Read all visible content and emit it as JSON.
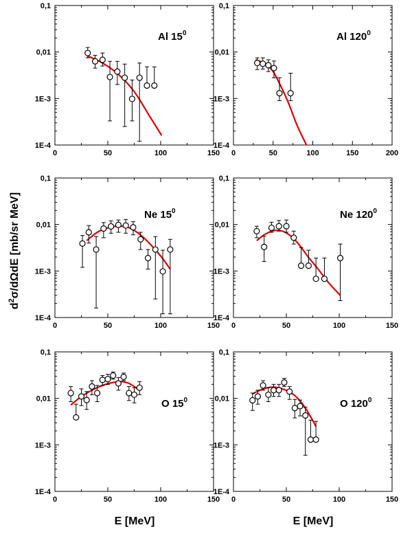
{
  "figure": {
    "ylabel_parts": [
      "d",
      "2",
      "σ/dΩdE [mb/sr MeV]"
    ],
    "xlabel": "E [MeV]"
  },
  "chart_data": [
    {
      "type": "scatter",
      "label": "Al",
      "angle": "15",
      "deg": "0",
      "xlim": [
        0,
        150
      ],
      "ylim": [
        0.0001,
        0.1
      ],
      "yscale": "log",
      "xticks": [
        "0",
        "50",
        "100",
        "150"
      ],
      "yticks": [
        "1E-4",
        "1E-3",
        "0,01",
        "0,1"
      ],
      "points": [
        {
          "x": 31,
          "y": 0.0095,
          "lo": 0.0075,
          "hi": 0.0125
        },
        {
          "x": 38,
          "y": 0.0063,
          "lo": 0.0045,
          "hi": 0.0085
        },
        {
          "x": 45,
          "y": 0.0068,
          "lo": 0.005,
          "hi": 0.0095
        },
        {
          "x": 52,
          "y": 0.0029,
          "lo": 0.00033,
          "hi": 0.0063
        },
        {
          "x": 59,
          "y": 0.0038,
          "lo": 0.002,
          "hi": 0.0063
        },
        {
          "x": 66,
          "y": 0.0028,
          "lo": 0.00025,
          "hi": 0.0055
        },
        {
          "x": 73,
          "y": 0.00098,
          "lo": 0.00033,
          "hi": 0.0025
        },
        {
          "x": 80,
          "y": 0.0028,
          "lo": 0.00012,
          "hi": 0.0058
        },
        {
          "x": 87,
          "y": 0.0019,
          "lo": 0.0019,
          "hi": 0.0048
        },
        {
          "x": 94,
          "y": 0.0019,
          "lo": 0.0019,
          "hi": 0.0048
        }
      ],
      "fit": {
        "x": [
          31,
          45,
          60,
          75,
          90,
          101
        ],
        "y": [
          0.0082,
          0.0058,
          0.0033,
          0.0014,
          0.0004,
          0.00016
        ]
      }
    },
    {
      "type": "scatter",
      "label": "Al",
      "angle": "120",
      "deg": "0",
      "xlim": [
        0,
        200
      ],
      "ylim": [
        0.0001,
        0.1
      ],
      "yscale": "log",
      "xticks": [
        "0",
        "50",
        "100",
        "150",
        "200"
      ],
      "yticks": [
        "1E-4",
        "1E-3",
        "0,01",
        "0,1"
      ],
      "points": [
        {
          "x": 30,
          "y": 0.0058,
          "lo": 0.0042,
          "hi": 0.0075
        },
        {
          "x": 37,
          "y": 0.0056,
          "lo": 0.0043,
          "hi": 0.0075
        },
        {
          "x": 44,
          "y": 0.0052,
          "lo": 0.0038,
          "hi": 0.0068
        },
        {
          "x": 51,
          "y": 0.0045,
          "lo": 0.0028,
          "hi": 0.0064
        },
        {
          "x": 58,
          "y": 0.0013,
          "lo": 0.0009,
          "hi": 0.0028
        },
        {
          "x": 72,
          "y": 0.0013,
          "lo": 0.0009,
          "hi": 0.0035
        }
      ],
      "fit": {
        "x": [
          28,
          40,
          50,
          60,
          70,
          80,
          92
        ],
        "y": [
          0.0068,
          0.0056,
          0.0038,
          0.0018,
          0.00075,
          0.00027,
          0.0001
        ]
      }
    },
    {
      "type": "scatter",
      "label": "Ne",
      "angle": "15",
      "deg": "0",
      "xlim": [
        0,
        150
      ],
      "ylim": [
        0.0001,
        0.1
      ],
      "yscale": "log",
      "xticks": [
        "0",
        "50",
        "100",
        "150"
      ],
      "yticks": [
        "1E-4",
        "1E-3",
        "0,01",
        "0,1"
      ],
      "points": [
        {
          "x": 26,
          "y": 0.0039,
          "lo": 0.0012,
          "hi": 0.0058
        },
        {
          "x": 32,
          "y": 0.0068,
          "lo": 0.004,
          "hi": 0.0095
        },
        {
          "x": 39,
          "y": 0.0029,
          "lo": 0.00016,
          "hi": 0.0055
        },
        {
          "x": 46,
          "y": 0.0082,
          "lo": 0.0052,
          "hi": 0.011
        },
        {
          "x": 53,
          "y": 0.0091,
          "lo": 0.0065,
          "hi": 0.012
        },
        {
          "x": 60,
          "y": 0.0098,
          "lo": 0.0068,
          "hi": 0.0125
        },
        {
          "x": 67,
          "y": 0.0095,
          "lo": 0.0065,
          "hi": 0.0128
        },
        {
          "x": 74,
          "y": 0.0087,
          "lo": 0.006,
          "hi": 0.0115
        },
        {
          "x": 81,
          "y": 0.0048,
          "lo": 0.0029,
          "hi": 0.0068
        },
        {
          "x": 88,
          "y": 0.0019,
          "lo": 0.0011,
          "hi": 0.0029
        },
        {
          "x": 95,
          "y": 0.0029,
          "lo": 0.00025,
          "hi": 0.0055
        },
        {
          "x": 102,
          "y": 0.00098,
          "lo": 0.00012,
          "hi": 0.0028
        },
        {
          "x": 109,
          "y": 0.0029,
          "lo": 0.00012,
          "hi": 0.0048
        }
      ],
      "fit": {
        "x": [
          30,
          40,
          50,
          60,
          70,
          80,
          90,
          100,
          109
        ],
        "y": [
          0.0045,
          0.0068,
          0.0085,
          0.0092,
          0.0085,
          0.0062,
          0.0038,
          0.0021,
          0.0011
        ]
      }
    },
    {
      "type": "scatter",
      "label": "Ne",
      "angle": "120",
      "deg": "0",
      "xlim": [
        0,
        150
      ],
      "ylim": [
        0.0001,
        0.1
      ],
      "yscale": "log",
      "xticks": [
        "0",
        "50",
        "100",
        "150"
      ],
      "yticks": [
        "1E-4",
        "1E-3",
        "0,01",
        "0,1"
      ],
      "points": [
        {
          "x": 22,
          "y": 0.0072,
          "lo": 0.0052,
          "hi": 0.0092
        },
        {
          "x": 29,
          "y": 0.0033,
          "lo": 0.0016,
          "hi": 0.0056
        },
        {
          "x": 36,
          "y": 0.0085,
          "lo": 0.0068,
          "hi": 0.0112
        },
        {
          "x": 43,
          "y": 0.0092,
          "lo": 0.0072,
          "hi": 0.0122
        },
        {
          "x": 50,
          "y": 0.0092,
          "lo": 0.0068,
          "hi": 0.0125
        },
        {
          "x": 57,
          "y": 0.0052,
          "lo": 0.0038,
          "hi": 0.0072
        },
        {
          "x": 64,
          "y": 0.0013,
          "lo": 0.0013,
          "hi": 0.0032
        },
        {
          "x": 71,
          "y": 0.0013,
          "lo": 0.0013,
          "hi": 0.0028
        },
        {
          "x": 78,
          "y": 0.00068,
          "lo": 0.00068,
          "hi": 0.0019
        },
        {
          "x": 86,
          "y": 0.00068,
          "lo": 0.00068,
          "hi": 0.0019
        },
        {
          "x": 101,
          "y": 0.0019,
          "lo": 0.00023,
          "hi": 0.0038
        }
      ],
      "fit": {
        "x": [
          22,
          30,
          40,
          50,
          60,
          70,
          80,
          90,
          101
        ],
        "y": [
          0.0045,
          0.0062,
          0.0075,
          0.0066,
          0.0042,
          0.0021,
          0.0011,
          0.00056,
          0.0003
        ]
      }
    },
    {
      "type": "scatter",
      "label": "O",
      "angle": "15",
      "deg": "0",
      "xlim": [
        0,
        150
      ],
      "ylim": [
        0.0001,
        0.1
      ],
      "yscale": "log",
      "xticks": [
        "0",
        "50",
        "100",
        "150"
      ],
      "yticks": [
        "1E-4",
        "1E-3",
        "0,01",
        "0,1"
      ],
      "points": [
        {
          "x": 15,
          "y": 0.013,
          "lo": 0.0085,
          "hi": 0.018
        },
        {
          "x": 20,
          "y": 0.0039,
          "lo": 0.0039,
          "hi": 0.0075
        },
        {
          "x": 25,
          "y": 0.011,
          "lo": 0.007,
          "hi": 0.016
        },
        {
          "x": 30,
          "y": 0.0092,
          "lo": 0.0058,
          "hi": 0.014
        },
        {
          "x": 35,
          "y": 0.018,
          "lo": 0.012,
          "hi": 0.024
        },
        {
          "x": 40,
          "y": 0.013,
          "lo": 0.0085,
          "hi": 0.019
        },
        {
          "x": 45,
          "y": 0.025,
          "lo": 0.019,
          "hi": 0.031
        },
        {
          "x": 50,
          "y": 0.026,
          "lo": 0.02,
          "hi": 0.033
        },
        {
          "x": 55,
          "y": 0.031,
          "lo": 0.026,
          "hi": 0.037
        },
        {
          "x": 60,
          "y": 0.021,
          "lo": 0.015,
          "hi": 0.028
        },
        {
          "x": 65,
          "y": 0.029,
          "lo": 0.024,
          "hi": 0.035
        },
        {
          "x": 70,
          "y": 0.013,
          "lo": 0.009,
          "hi": 0.018
        },
        {
          "x": 75,
          "y": 0.012,
          "lo": 0.008,
          "hi": 0.017
        },
        {
          "x": 80,
          "y": 0.017,
          "lo": 0.012,
          "hi": 0.023
        }
      ],
      "fit": {
        "x": [
          15,
          25,
          35,
          45,
          55,
          62,
          70,
          80
        ],
        "y": [
          0.0072,
          0.011,
          0.015,
          0.019,
          0.022,
          0.023,
          0.021,
          0.015
        ]
      }
    },
    {
      "type": "scatter",
      "label": "O",
      "angle": "120",
      "deg": "0",
      "xlim": [
        0,
        150
      ],
      "ylim": [
        0.0001,
        0.1
      ],
      "yscale": "log",
      "xticks": [
        "0",
        "50",
        "100",
        "150"
      ],
      "yticks": [
        "1E-4",
        "1E-3",
        "0,01",
        "0,1"
      ],
      "points": [
        {
          "x": 18,
          "y": 0.0091,
          "lo": 0.0055,
          "hi": 0.013
        },
        {
          "x": 23,
          "y": 0.011,
          "lo": 0.0075,
          "hi": 0.015
        },
        {
          "x": 28,
          "y": 0.019,
          "lo": 0.015,
          "hi": 0.024
        },
        {
          "x": 33,
          "y": 0.012,
          "lo": 0.0085,
          "hi": 0.017
        },
        {
          "x": 38,
          "y": 0.015,
          "lo": 0.011,
          "hi": 0.02
        },
        {
          "x": 43,
          "y": 0.015,
          "lo": 0.011,
          "hi": 0.02
        },
        {
          "x": 48,
          "y": 0.022,
          "lo": 0.018,
          "hi": 0.027
        },
        {
          "x": 53,
          "y": 0.014,
          "lo": 0.0095,
          "hi": 0.018
        },
        {
          "x": 58,
          "y": 0.0062,
          "lo": 0.0038,
          "hi": 0.0095
        },
        {
          "x": 63,
          "y": 0.0068,
          "lo": 0.0042,
          "hi": 0.0092
        },
        {
          "x": 68,
          "y": 0.0043,
          "lo": 0.0006,
          "hi": 0.0065
        },
        {
          "x": 73,
          "y": 0.0013,
          "lo": 0.0013,
          "hi": 0.0034
        },
        {
          "x": 78,
          "y": 0.0013,
          "lo": 0.0013,
          "hi": 0.0032
        }
      ],
      "fit": {
        "x": [
          18,
          28,
          38,
          48,
          58,
          68,
          78
        ],
        "y": [
          0.0125,
          0.016,
          0.0175,
          0.0155,
          0.0115,
          0.0062,
          0.0025
        ]
      }
    }
  ]
}
